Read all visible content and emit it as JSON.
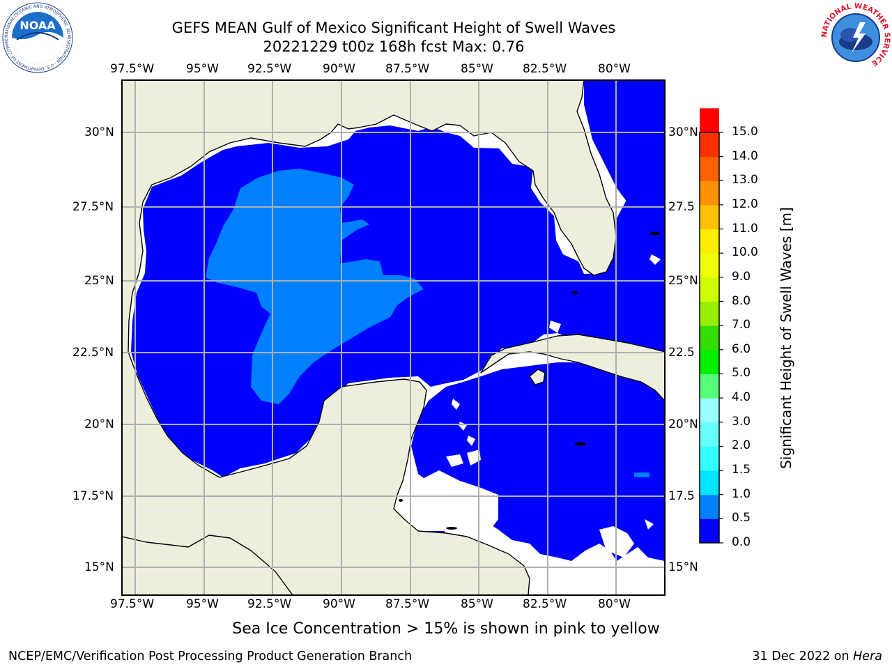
{
  "title": {
    "line1": "GEFS MEAN Gulf of Mexico Significant Height of Swell Waves",
    "line2": "20221229 t00z 168h fcst   Max: 0.76"
  },
  "map": {
    "extent": {
      "lon_min": -98.0,
      "lon_max": -78.25,
      "lat_min": 14.0,
      "lat_max": 31.75
    },
    "lon_ticks": [
      -97.5,
      -95,
      -92.5,
      -90,
      -87.5,
      -85,
      -82.5,
      -80
    ],
    "lon_labels": [
      "97.5°W",
      "95°W",
      "92.5°W",
      "90°W",
      "87.5°W",
      "85°W",
      "82.5°W",
      "80°W"
    ],
    "lat_ticks": [
      30,
      27.5,
      25,
      22.5,
      20,
      17.5,
      15
    ],
    "lat_labels_left": [
      "30°N",
      "27.5°N",
      "25°N",
      "22.5°N",
      "20°N",
      "17.5°N",
      "15°N"
    ],
    "lat_labels_right": [
      "30°N",
      "27.5",
      "25°N",
      "22.5",
      "20°N",
      "17.5",
      "15°N"
    ],
    "colors": {
      "land": "#eeeedc",
      "level_0": "#0000ff",
      "level_05": "#0080ff",
      "grid": "#b0b0b0",
      "coast": "#000000"
    }
  },
  "colorbar": {
    "label": "Significant Height of Swell Waves [m]",
    "tick_labels": [
      "0.0",
      "0.5",
      "1.0",
      "1.5",
      "2.0",
      "3.0",
      "4.0",
      "5.0",
      "6.0",
      "7.0",
      "8.0",
      "9.0",
      "10.0",
      "11.0",
      "12.0",
      "13.0",
      "14.0",
      "15.0"
    ],
    "colors": [
      "#0000ff",
      "#0080ff",
      "#00e5ff",
      "#33ffff",
      "#66ffff",
      "#99ffff",
      "#55ff77",
      "#00ee00",
      "#33dd00",
      "#99ee00",
      "#ccff00",
      "#eeff00",
      "#ffee00",
      "#ffc000",
      "#ff9000",
      "#ff6000",
      "#ff3000",
      "#ff0000"
    ]
  },
  "caption": "Sea Ice Concentration > 15% is shown in pink to yellow",
  "footer": {
    "left": "NCEP/EMC/Verification Post Processing Product Generation Branch",
    "right_date": "31 Dec 2022 on ",
    "right_host": "Hera"
  },
  "logos": {
    "noaa_text": "NOAA",
    "noaa_ring": "NATIONAL OCEANIC AND ATMOSPHERIC ADMINISTRATION · U.S. DEPARTMENT OF COMMERCE",
    "nws_ring": "NATIONAL WEATHER SERVICE"
  }
}
